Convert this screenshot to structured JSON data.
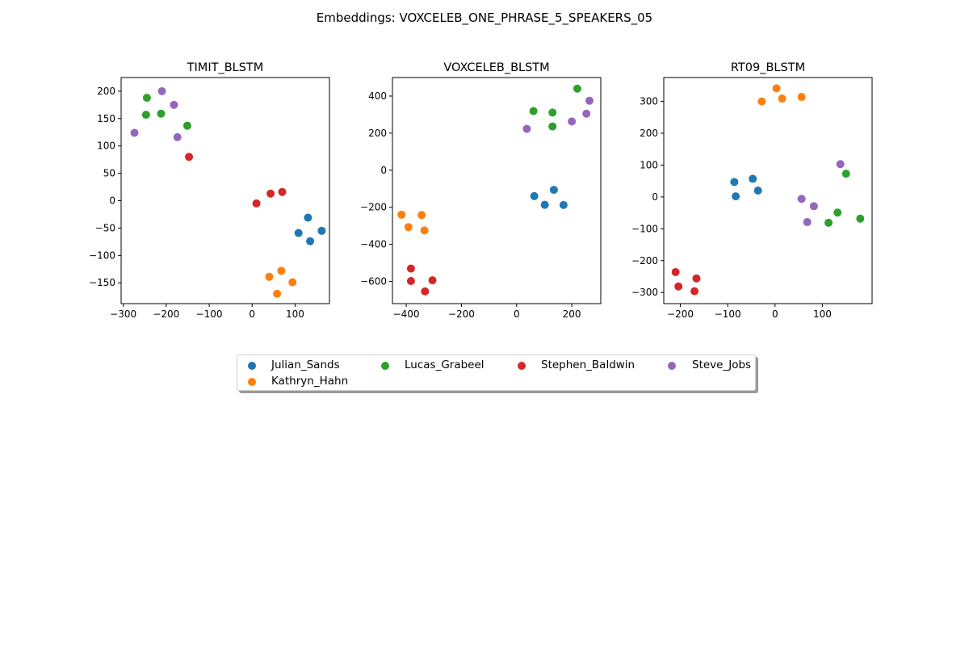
{
  "suptitle": "Embeddings: VOXCELEB_ONE_PHRASE_5_SPEAKERS_05",
  "legend": {
    "placement": "bottom-center",
    "entries": [
      {
        "name": "Julian_Sands",
        "color": "#1f77b4"
      },
      {
        "name": "Kathryn_Hahn",
        "color": "#ff7f0e"
      },
      {
        "name": "Lucas_Grabeel",
        "color": "#2ca02c"
      },
      {
        "name": "Stephen_Baldwin",
        "color": "#d62728"
      },
      {
        "name": "Steve_Jobs",
        "color": "#9467bd"
      }
    ]
  },
  "chart_data": [
    {
      "type": "scatter",
      "title": "TIMIT_BLSTM",
      "xlim": [
        -305,
        180
      ],
      "ylim": [
        -188,
        225
      ],
      "xticks": [
        -300,
        -200,
        -100,
        0,
        100
      ],
      "yticks": [
        -150,
        -100,
        -50,
        0,
        50,
        100,
        150,
        200
      ],
      "grid": false,
      "series": [
        {
          "name": "Julian_Sands",
          "color": "#1f77b4",
          "points": [
            [
              130,
              -31
            ],
            [
              108,
              -59
            ],
            [
              135,
              -74
            ],
            [
              162,
              -55
            ]
          ]
        },
        {
          "name": "Kathryn_Hahn",
          "color": "#ff7f0e",
          "points": [
            [
              40,
              -139
            ],
            [
              68,
              -128
            ],
            [
              58,
              -170
            ],
            [
              94,
              -149
            ]
          ]
        },
        {
          "name": "Lucas_Grabeel",
          "color": "#2ca02c",
          "points": [
            [
              -245,
              188
            ],
            [
              -247,
              157
            ],
            [
              -212,
              159
            ],
            [
              -151,
              137
            ]
          ]
        },
        {
          "name": "Stephen_Baldwin",
          "color": "#d62728",
          "points": [
            [
              -147,
              80
            ],
            [
              10,
              -5
            ],
            [
              43,
              13
            ],
            [
              70,
              16
            ]
          ]
        },
        {
          "name": "Steve_Jobs",
          "color": "#9467bd",
          "points": [
            [
              -210,
              200
            ],
            [
              -182,
              175
            ],
            [
              -174,
              116
            ],
            [
              -274,
              124
            ]
          ]
        }
      ]
    },
    {
      "type": "scatter",
      "title": "VOXCELEB_BLSTM",
      "xlim": [
        -450,
        305
      ],
      "ylim": [
        -720,
        500
      ],
      "xticks": [
        -400,
        -200,
        0,
        200
      ],
      "yticks": [
        -600,
        -400,
        -200,
        0,
        200,
        400
      ],
      "grid": false,
      "series": [
        {
          "name": "Julian_Sands",
          "color": "#1f77b4",
          "points": [
            [
              64,
              -140
            ],
            [
              135,
              -106
            ],
            [
              102,
              -187
            ],
            [
              170,
              -188
            ]
          ]
        },
        {
          "name": "Kathryn_Hahn",
          "color": "#ff7f0e",
          "points": [
            [
              -417,
              -240
            ],
            [
              -392,
              -307
            ],
            [
              -344,
              -242
            ],
            [
              -334,
              -325
            ]
          ]
        },
        {
          "name": "Lucas_Grabeel",
          "color": "#2ca02c",
          "points": [
            [
              61,
              319
            ],
            [
              130,
              311
            ],
            [
              130,
              236
            ],
            [
              220,
              440
            ]
          ]
        },
        {
          "name": "Stephen_Baldwin",
          "color": "#d62728",
          "points": [
            [
              -383,
              -531
            ],
            [
              -383,
              -598
            ],
            [
              -305,
              -594
            ],
            [
              -332,
              -654
            ]
          ]
        },
        {
          "name": "Steve_Jobs",
          "color": "#9467bd",
          "points": [
            [
              37,
              223
            ],
            [
              200,
              263
            ],
            [
              253,
              305
            ],
            [
              264,
              375
            ]
          ]
        }
      ]
    },
    {
      "type": "scatter",
      "title": "RT09_BLSTM",
      "xlim": [
        -235,
        205
      ],
      "ylim": [
        -335,
        375
      ],
      "xticks": [
        -200,
        -100,
        0,
        100
      ],
      "yticks": [
        -300,
        -200,
        -100,
        0,
        100,
        200,
        300
      ],
      "grid": false,
      "series": [
        {
          "name": "Julian_Sands",
          "color": "#1f77b4",
          "points": [
            [
              -86,
              47
            ],
            [
              -47,
              57
            ],
            [
              -83,
              2
            ],
            [
              -36,
              20
            ]
          ]
        },
        {
          "name": "Kathryn_Hahn",
          "color": "#ff7f0e",
          "points": [
            [
              3,
              341
            ],
            [
              -28,
              300
            ],
            [
              15,
              309
            ],
            [
              56,
              314
            ]
          ]
        },
        {
          "name": "Lucas_Grabeel",
          "color": "#2ca02c",
          "points": [
            [
              150,
              73
            ],
            [
              132,
              -49
            ],
            [
              113,
              -81
            ],
            [
              180,
              -68
            ]
          ]
        },
        {
          "name": "Stephen_Baldwin",
          "color": "#d62728",
          "points": [
            [
              -210,
              -236
            ],
            [
              -204,
              -281
            ],
            [
              -166,
              -256
            ],
            [
              -170,
              -296
            ]
          ]
        },
        {
          "name": "Steve_Jobs",
          "color": "#9467bd",
          "points": [
            [
              138,
              103
            ],
            [
              56,
              -6
            ],
            [
              82,
              -29
            ],
            [
              68,
              -79
            ]
          ]
        }
      ]
    }
  ]
}
